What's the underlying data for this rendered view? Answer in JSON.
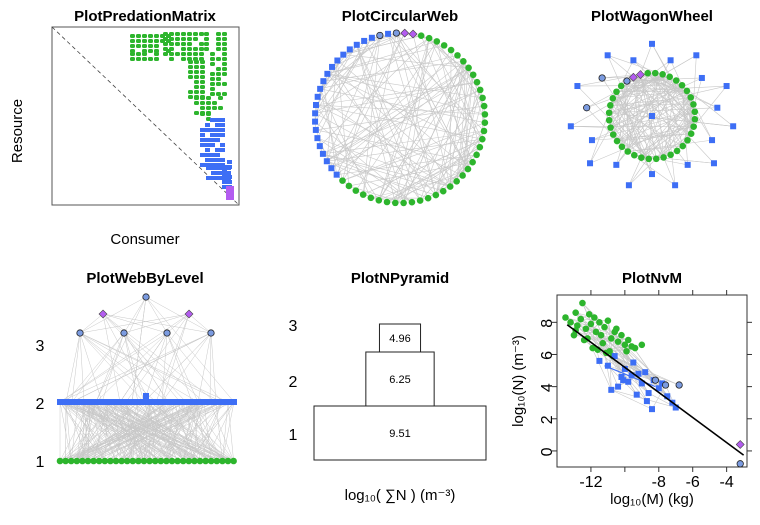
{
  "palette": {
    "basal": "#2db52d",
    "intermediate": "#3d6ef5",
    "top": "#b35cf0",
    "omni": "#7b9be0",
    "link": "#c8c8c8"
  },
  "chart_data": [
    {
      "type": "matrix",
      "title": "PlotPredationMatrix",
      "xlabel": "Consumer",
      "ylabel": "Resource"
    },
    {
      "type": "network-circular",
      "title": "PlotCircularWeb"
    },
    {
      "type": "network-wagonwheel",
      "title": "PlotWagonWheel"
    },
    {
      "type": "network-levels",
      "title": "PlotWebByLevel",
      "levels": [
        "1",
        "2",
        "3"
      ]
    },
    {
      "type": "pyramid",
      "title": "PlotNPyramid",
      "categories": [
        "1",
        "2",
        "3"
      ],
      "values": [
        9.51,
        6.25,
        4.96
      ],
      "value_labels": [
        "9.51",
        "6.25",
        "4.96"
      ],
      "xlabel": "log₁₀( ∑N ) (m⁻³)"
    },
    {
      "type": "scatter",
      "title": "PlotNvM",
      "xlabel": "log₁₀(M) (kg)",
      "ylabel": "log₁₀(N) (m⁻³)",
      "xlim": [
        -14,
        -2.8
      ],
      "ylim": [
        -1,
        9.7
      ],
      "xticks": [
        "-12",
        "-8",
        "-6",
        "-4"
      ],
      "yticks": [
        "0",
        "2",
        "4",
        "6",
        "8"
      ],
      "regression": {
        "slope": -0.78,
        "intercept": -2.6
      },
      "series": [
        {
          "name": "basal",
          "x": [
            -13.5,
            -13.2,
            -12.9,
            -12.8,
            -12.6,
            -12.5,
            -12.3,
            -12.1,
            -12.0,
            -11.8,
            -11.7,
            -11.5,
            -11.4,
            -11.2,
            -11.0,
            -10.8,
            -10.6,
            -10.4,
            -10.2,
            -10.0,
            -9.8,
            -9.6,
            -12.9,
            -12.2,
            -11.9,
            -11.3,
            -10.9,
            -10.5,
            -13.0,
            -12.4,
            -11.6,
            -11.1,
            -10.7,
            -9.9,
            -9.4,
            -9.0
          ],
          "y": [
            8.3,
            8.0,
            8.6,
            7.8,
            8.2,
            9.2,
            7.6,
            8.5,
            7.9,
            8.3,
            7.4,
            8.0,
            7.2,
            7.7,
            8.1,
            7.0,
            7.4,
            6.8,
            7.2,
            6.6,
            6.9,
            6.5,
            7.5,
            7.0,
            6.4,
            6.7,
            6.2,
            7.6,
            7.2,
            6.9,
            6.3,
            6.1,
            5.9,
            6.2,
            6.4,
            6.6
          ]
        },
        {
          "name": "intermediate",
          "x": [
            -11.5,
            -11.0,
            -10.6,
            -10.2,
            -10.0,
            -9.8,
            -9.5,
            -9.2,
            -9.0,
            -8.8,
            -8.6,
            -8.3,
            -8.0,
            -7.8,
            -7.5,
            -7.2,
            -7.0,
            -10.8,
            -10.4,
            -9.6,
            -9.3,
            -8.7,
            -8.4,
            -10.1
          ],
          "y": [
            5.6,
            5.3,
            5.9,
            4.6,
            5.1,
            4.3,
            5.5,
            4.8,
            4.2,
            4.9,
            3.6,
            4.4,
            3.9,
            4.2,
            3.4,
            3.0,
            2.7,
            3.8,
            4.0,
            4.7,
            3.5,
            3.1,
            2.6,
            4.4
          ]
        },
        {
          "name": "omnivore",
          "x": [
            -8.2,
            -7.6,
            -6.8
          ],
          "y": [
            4.4,
            4.1,
            4.1
          ]
        },
        {
          "name": "top",
          "x": [
            -3.2,
            -3.2
          ],
          "y": [
            0.4,
            -0.8
          ]
        }
      ]
    }
  ]
}
